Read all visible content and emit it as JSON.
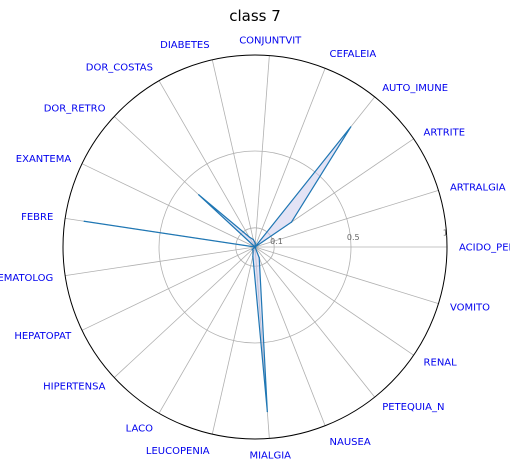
{
  "chart_data": {
    "type": "radar",
    "title": "class 7",
    "categories": [
      "ACIDO_PEPT",
      "ARTRALGIA",
      "ARTRITE",
      "AUTO_IMUNE",
      "CEFALEIA",
      "CONJUNTVIT",
      "DIABETES",
      "DOR_COSTAS",
      "DOR_RETRO",
      "EXANTEMA",
      "FEBRE",
      "HEMATOLOG",
      "HEPATOPAT",
      "HIPERTENSA",
      "LACO",
      "LEUCOPENIA",
      "MIALGIA",
      "NAUSEA",
      "PETEQUIA_N",
      "RENAL",
      "VOMITO"
    ],
    "values": [
      0.0,
      0.0,
      0.23,
      0.8,
      0.0,
      0.02,
      0.04,
      0.06,
      0.4,
      0.0,
      0.9,
      0.0,
      0.0,
      0.02,
      0.02,
      0.05,
      0.86,
      0.06,
      0.0,
      0.0,
      0.0
    ],
    "rlim": [
      0,
      1
    ],
    "rticks": [
      0.1,
      0.5,
      1
    ],
    "rtick_labels": [
      "0.1",
      "0.5",
      "1"
    ],
    "grid": true,
    "line_color": "#1f77b4",
    "fill_color": "#c8c8eb",
    "label_color": "#0000ee"
  }
}
